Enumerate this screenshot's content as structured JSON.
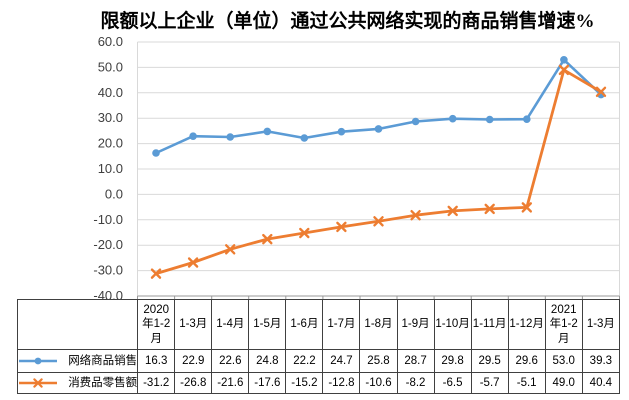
{
  "title": "限额以上企业（单位）通过公共网络实现的商品销售增速%",
  "chart_data": {
    "type": "line",
    "title": "限额以上企业（单位）通过公共网络实现的商品销售增速%",
    "categories": [
      "2020年1-2月",
      "1-3月",
      "1-4月",
      "1-5月",
      "1-6月",
      "1-7月",
      "1-8月",
      "1-9月",
      "1-10月",
      "1-11月",
      "1-12月",
      "2021年1-2月",
      "1-3月"
    ],
    "series": [
      {
        "id": "online-goods-sales",
        "name": "网络商品销售",
        "marker": "circle",
        "color": "#5B9BD5",
        "line_width": 2.6,
        "values": [
          16.3,
          22.9,
          22.6,
          24.8,
          22.2,
          24.7,
          25.8,
          28.7,
          29.8,
          29.5,
          29.6,
          53.0,
          39.3
        ]
      },
      {
        "id": "consumer-goods-retail",
        "name": "消费品零售额",
        "marker": "x",
        "color": "#ED7D31",
        "line_width": 2.8,
        "values": [
          -31.2,
          -26.8,
          -21.6,
          -17.6,
          -15.2,
          -12.8,
          -10.6,
          -8.2,
          -6.5,
          -5.7,
          -5.1,
          49.0,
          40.4
        ]
      }
    ],
    "ylim": [
      -40,
      60
    ],
    "ytick_step": 10,
    "ytick_labels": [
      "60.0",
      "50.0",
      "40.0",
      "30.0",
      "20.0",
      "10.0",
      "0.0",
      "-10.0",
      "-20.0",
      "-30.0",
      "-40.0"
    ],
    "grid": true,
    "legend_position": "data-table-left",
    "value_decimals": 1,
    "colors": {
      "grid": "#D9D9D9",
      "axis": "#999999",
      "table_border": "#404040",
      "text": "#000000",
      "tick_text": "#404040",
      "background": "#FFFFFF"
    }
  }
}
